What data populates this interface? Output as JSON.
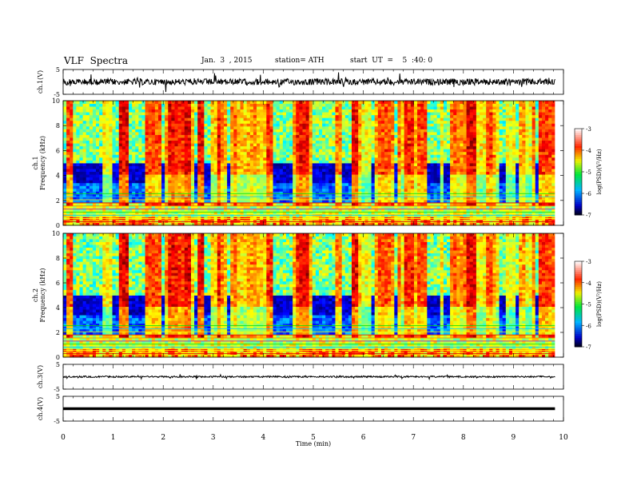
{
  "header": {
    "title": "VLF  Spectra",
    "date": "Jan.  3  , 2015",
    "station": "station= ATH",
    "start": "start  UT  =    5  :40: 0"
  },
  "chart_data": [
    {
      "type": "line",
      "name": "ch1-waveform",
      "ylabel": "ch.1(V)",
      "ylim": [
        -5,
        5
      ],
      "yticks": [
        "5",
        "-5"
      ],
      "xlim": [
        0,
        10
      ]
    },
    {
      "type": "heatmap",
      "name": "ch1-spectrogram",
      "ylabel": "ch.1\nFrequency  (kHz)",
      "ylim": [
        0,
        10
      ],
      "yticks": [
        "0",
        "2",
        "4",
        "6",
        "8",
        "10"
      ],
      "xlim": [
        0,
        10
      ],
      "colorbar": {
        "label": "log(PSD)(V²/Hz)",
        "range": [
          -7,
          -3
        ],
        "ticks": [
          "-3",
          "-4",
          "-5",
          "-6",
          "-7"
        ]
      }
    },
    {
      "type": "heatmap",
      "name": "ch2-spectrogram",
      "ylabel": "ch.2\nFrequency  (kHz)",
      "ylim": [
        0,
        10
      ],
      "yticks": [
        "0",
        "2",
        "4",
        "6",
        "8",
        "10"
      ],
      "xlim": [
        0,
        10
      ],
      "colorbar": {
        "label": "log(PSD)(V²/Hz)",
        "range": [
          -7,
          -3
        ],
        "ticks": [
          "-3",
          "-4",
          "-5",
          "-6",
          "-7"
        ]
      }
    },
    {
      "type": "line",
      "name": "ch3-waveform",
      "ylabel": "ch.3(V)",
      "ylim": [
        -5,
        5
      ],
      "yticks": [
        "5",
        "-5"
      ],
      "xlim": [
        0,
        10
      ]
    },
    {
      "type": "line",
      "name": "ch4-waveform",
      "ylabel": "ch.4(V)",
      "ylim": [
        -5,
        5
      ],
      "yticks": [
        "5",
        "-5"
      ],
      "xlim": [
        0,
        10
      ]
    }
  ],
  "xaxis": {
    "label": "Time  (min)",
    "ticks": [
      "0",
      "1",
      "2",
      "3",
      "4",
      "5",
      "6",
      "7",
      "8",
      "9",
      "10"
    ],
    "data_end": 9.83
  }
}
